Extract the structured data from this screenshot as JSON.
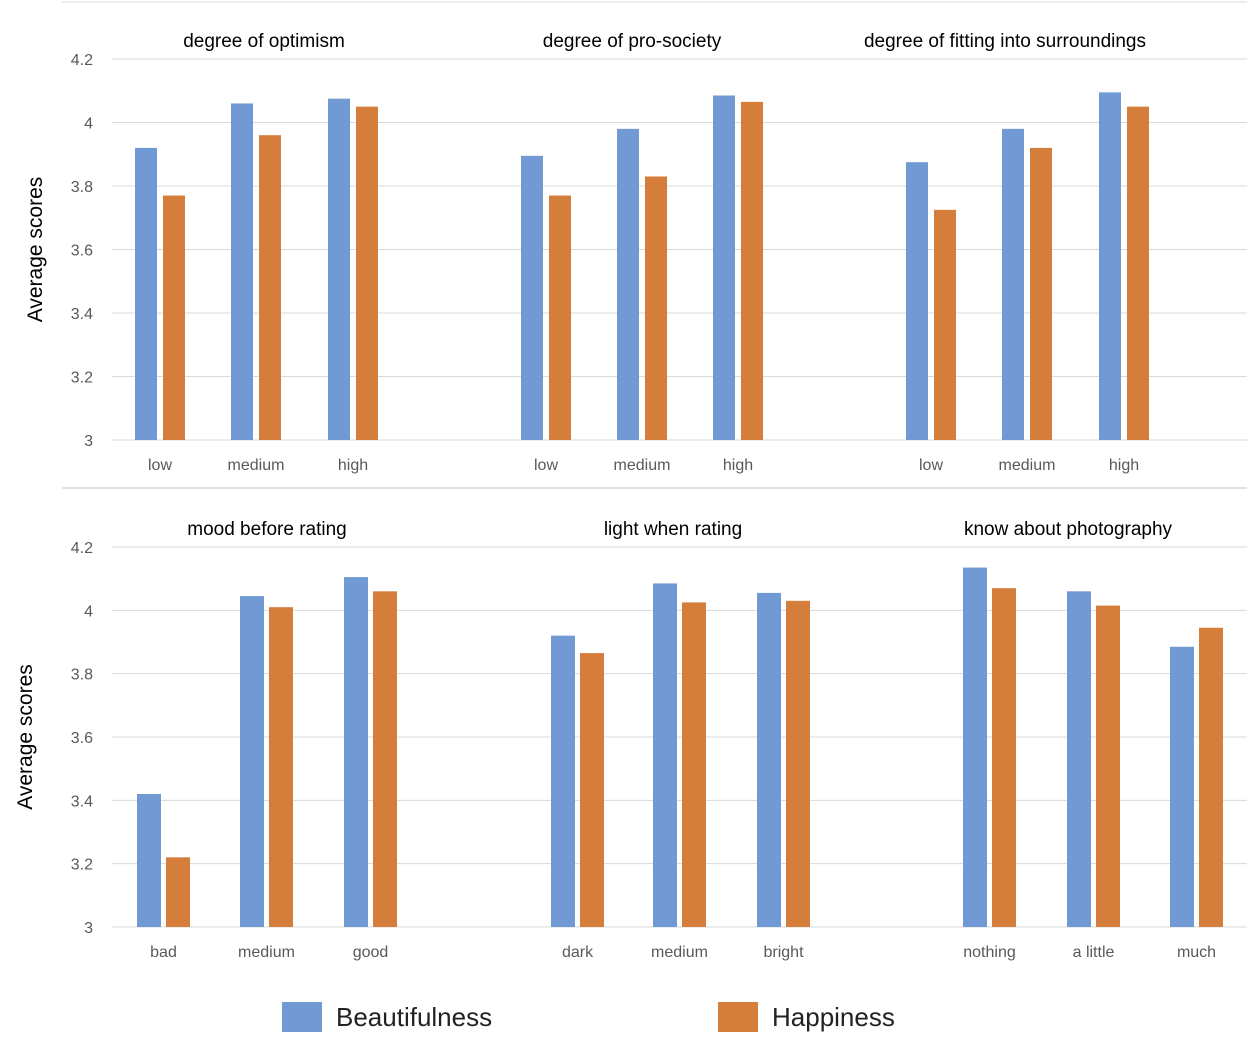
{
  "colors": {
    "beautifulness": "#7199d3",
    "happiness": "#d57d3a",
    "grid": "#d9d9d9",
    "text": "#595959"
  },
  "ylabel": "Average scores",
  "legend": {
    "beautifulness": "Beautifulness",
    "happiness": "Happiness"
  },
  "chart_data": [
    {
      "type": "bar",
      "title": "degree of optimism",
      "row": 0,
      "col": 0,
      "categories": [
        "low",
        "medium",
        "high"
      ],
      "series": [
        {
          "name": "Beautifulness",
          "values": [
            3.92,
            4.06,
            4.075
          ]
        },
        {
          "name": "Happiness",
          "values": [
            3.77,
            3.96,
            4.05
          ]
        }
      ],
      "ylim": [
        3,
        4.2
      ],
      "yticks": [
        "3",
        "3.2",
        "3.4",
        "3.6",
        "3.8",
        "4",
        "4.2"
      ],
      "ylabel": "Average scores"
    },
    {
      "type": "bar",
      "title": "degree of pro-society",
      "row": 0,
      "col": 1,
      "categories": [
        "low",
        "medium",
        "high"
      ],
      "series": [
        {
          "name": "Beautifulness",
          "values": [
            3.895,
            3.98,
            4.085
          ]
        },
        {
          "name": "Happiness",
          "values": [
            3.77,
            3.83,
            4.065
          ]
        }
      ],
      "ylim": [
        3,
        4.2
      ]
    },
    {
      "type": "bar",
      "title": "degree of fitting into surroundings",
      "row": 0,
      "col": 2,
      "categories": [
        "low",
        "medium",
        "high"
      ],
      "series": [
        {
          "name": "Beautifulness",
          "values": [
            3.875,
            3.98,
            4.095
          ]
        },
        {
          "name": "Happiness",
          "values": [
            3.725,
            3.92,
            4.05
          ]
        }
      ],
      "ylim": [
        3,
        4.2
      ]
    },
    {
      "type": "bar",
      "title": "mood before rating",
      "row": 1,
      "col": 0,
      "categories": [
        "bad",
        "medium",
        "good"
      ],
      "series": [
        {
          "name": "Beautifulness",
          "values": [
            3.42,
            4.045,
            4.105
          ]
        },
        {
          "name": "Happiness",
          "values": [
            3.22,
            4.01,
            4.06
          ]
        }
      ],
      "ylim": [
        3,
        4.2
      ],
      "yticks": [
        "3",
        "3.2",
        "3.4",
        "3.6",
        "3.8",
        "4",
        "4.2"
      ],
      "ylabel": "Average scores"
    },
    {
      "type": "bar",
      "title": "light when rating",
      "row": 1,
      "col": 1,
      "categories": [
        "dark",
        "medium",
        "bright"
      ],
      "series": [
        {
          "name": "Beautifulness",
          "values": [
            3.92,
            4.085,
            4.055
          ]
        },
        {
          "name": "Happiness",
          "values": [
            3.865,
            4.025,
            4.03
          ]
        }
      ],
      "ylim": [
        3,
        4.2
      ]
    },
    {
      "type": "bar",
      "title": "know about photography",
      "row": 1,
      "col": 2,
      "categories": [
        "nothing",
        "a little",
        "much"
      ],
      "series": [
        {
          "name": "Beautifulness",
          "values": [
            4.135,
            4.06,
            3.885
          ]
        },
        {
          "name": "Happiness",
          "values": [
            4.07,
            4.015,
            3.945
          ]
        }
      ],
      "ylim": [
        3,
        4.2
      ]
    }
  ]
}
